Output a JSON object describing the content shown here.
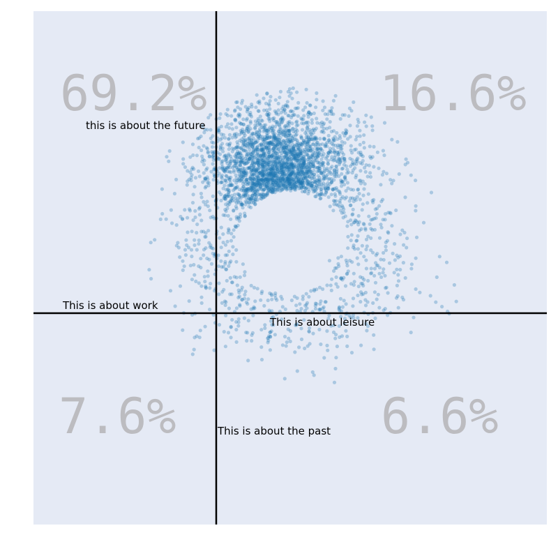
{
  "chart_data": {
    "type": "scatter",
    "title": "",
    "xlabel": "",
    "ylabel": "",
    "xlim": [
      -1,
      1
    ],
    "ylim": [
      -1,
      1
    ],
    "grid": false,
    "colors": {
      "background": "#e5eaf5",
      "points": "#1f77b4",
      "axes": "#000000",
      "percent_text": "#bcbcc0"
    },
    "quadrant_percentages": {
      "top_left": "69.2%",
      "top_right": "16.6%",
      "bottom_left": "7.6%",
      "bottom_right": "6.6%"
    },
    "axis_labels": {
      "top": "this is about the future",
      "bottom": "This is about the past",
      "left": "This is about work",
      "right": "This is about leisure"
    },
    "cluster": {
      "center": [
        0.0,
        0.1
      ],
      "inner_radius": 0.2,
      "outer_radius": 0.6,
      "approx_point_count": 3200
    }
  }
}
